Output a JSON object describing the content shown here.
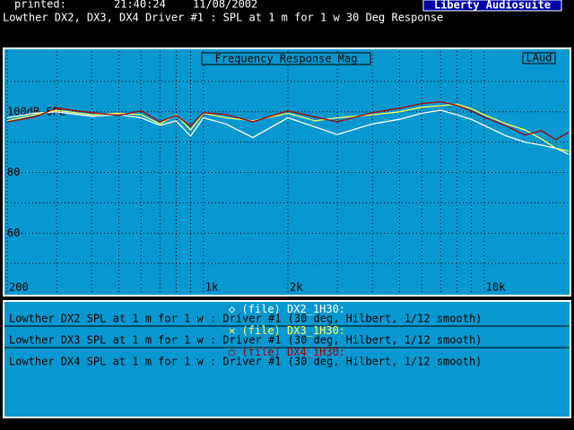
{
  "header": {
    "printed_label": "printed:",
    "time": "21:40:24",
    "date": "11/08/2002",
    "app_name": "Liberty Audiosuite",
    "subtitle": "Lowther DX2, DX3, DX4 Driver #1 : SPL at 1 m for 1 w 30 Deg Response"
  },
  "chart_data": {
    "type": "line",
    "title": "Frequency Response Mag",
    "tag": "LAud",
    "log_x": true,
    "grid": true,
    "x": [
      200,
      250,
      300,
      400,
      500,
      600,
      700,
      800,
      900,
      1000,
      1200,
      1500,
      2000,
      2500,
      3000,
      4000,
      5000,
      6000,
      7000,
      8000,
      9000,
      10000,
      12000,
      14000,
      16000,
      18000,
      20000
    ],
    "series": [
      {
        "name": "(file) DX2_1H30:",
        "symbol": "◇",
        "color": "#ffffff",
        "description": "Lowther DX2 SPL at 1 m for 1 w : Driver #1 (30 deg, Hilbert, 1/12 smooth)",
        "values": [
          98,
          99.5,
          100,
          98.5,
          99,
          98,
          95.5,
          97,
          92,
          98,
          96,
          91.5,
          98,
          95,
          92.5,
          96,
          97.5,
          99.5,
          100.5,
          99,
          97.5,
          95.5,
          92,
          90,
          89,
          88,
          86
        ]
      },
      {
        "name": "(file) DX3_1H30:",
        "symbol": "✕",
        "color": "#ffff55",
        "description": "Lowther DX3 SPL at 1 m for 1 w : Driver #1 (30 deg, Hilbert, 1/12 smooth)",
        "values": [
          97,
          99,
          100.5,
          99,
          99.5,
          99,
          96,
          99,
          94,
          99.5,
          98,
          97,
          99.5,
          97,
          98,
          99,
          100,
          101.5,
          102,
          102.5,
          101,
          99,
          96,
          94,
          91,
          88,
          87
        ]
      },
      {
        "name": "(file) DX4_1H30:",
        "symbol": "○",
        "color": "#aa0000",
        "description": "Lowther DX4 SPL at 1 m for 1 w : Driver #1 (30 deg, Hilbert, 1/12 smooth)",
        "values": [
          96.7,
          98.2,
          101.2,
          99.7,
          98.8,
          100.3,
          96.7,
          98.8,
          95.3,
          99.7,
          99.1,
          96.7,
          100.3,
          98.2,
          96.7,
          99.7,
          101.2,
          102.7,
          103.3,
          102.1,
          100.3,
          98.2,
          95.3,
          92.3,
          93.8,
          90.8,
          93.2
        ]
      }
    ],
    "xlim": [
      200,
      20000
    ],
    "ylim": [
      40,
      120
    ],
    "xticks": [
      200,
      {
        "value": 1000,
        "label": "1k"
      },
      {
        "value": 2000,
        "label": "2k"
      },
      {
        "value": 10000,
        "label": "10k"
      }
    ],
    "xminor": [
      300,
      400,
      500,
      600,
      700,
      800,
      900,
      3000,
      4000,
      5000,
      6000,
      7000,
      8000,
      9000
    ],
    "yticks": [
      {
        "value": 100,
        "label": "100dB SPL"
      },
      80,
      60
    ],
    "yminor": [
      110,
      90,
      70,
      50
    ]
  }
}
